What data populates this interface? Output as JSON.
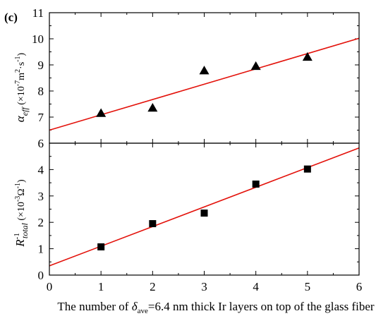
{
  "panel_label": "(c)",
  "xaxis": {
    "label_prefix": "The number of ",
    "label_symbol": "δ",
    "label_symbol_sub": "ave",
    "label_suffix": "=6.4 nm thick Ir layers on top of the glass fiber",
    "range": [
      0,
      6
    ],
    "ticks": [
      0,
      1,
      2,
      3,
      4,
      5,
      6
    ]
  },
  "chart_data": [
    {
      "type": "scatter",
      "panel": "top",
      "ylabel": {
        "symbol": "α",
        "symbol_sub": "eff",
        "units_open": " (×10",
        "units_exp1": "-7",
        "units_mid": "m",
        "units_exp2": "2",
        "units_dot": "·s",
        "units_exp3": "-1",
        "units_close": ")"
      },
      "xlim": [
        0,
        6
      ],
      "ylim": [
        6,
        11
      ],
      "yticks": [
        6,
        7,
        8,
        9,
        10,
        11
      ],
      "marker": "triangle",
      "marker_color": "#000000",
      "points": [
        {
          "x": 1,
          "y": 7.15
        },
        {
          "x": 2,
          "y": 7.35
        },
        {
          "x": 3,
          "y": 8.78
        },
        {
          "x": 4,
          "y": 8.95
        },
        {
          "x": 5,
          "y": 9.3
        }
      ],
      "fit_line": {
        "color": "#e3120b",
        "x": [
          0,
          6
        ],
        "y": [
          6.5,
          10.02
        ]
      }
    },
    {
      "type": "scatter",
      "panel": "bottom",
      "ylabel": {
        "symbol": "R",
        "symbol_sup": "-1",
        "symbol_sub": "total",
        "units_open": " (×10",
        "units_exp1": "-3",
        "units_mid": "Ω",
        "units_exp2": "-1",
        "units_close": ")"
      },
      "xlim": [
        0,
        6
      ],
      "ylim": [
        0,
        5
      ],
      "yticks": [
        0,
        1,
        2,
        3,
        4
      ],
      "marker": "square",
      "marker_color": "#000000",
      "points": [
        {
          "x": 1,
          "y": 1.07
        },
        {
          "x": 2,
          "y": 1.95
        },
        {
          "x": 3,
          "y": 2.35
        },
        {
          "x": 4,
          "y": 3.45
        },
        {
          "x": 5,
          "y": 4.02
        }
      ],
      "fit_line": {
        "color": "#e3120b",
        "x": [
          0,
          6
        ],
        "y": [
          0.35,
          4.82
        ]
      }
    }
  ]
}
